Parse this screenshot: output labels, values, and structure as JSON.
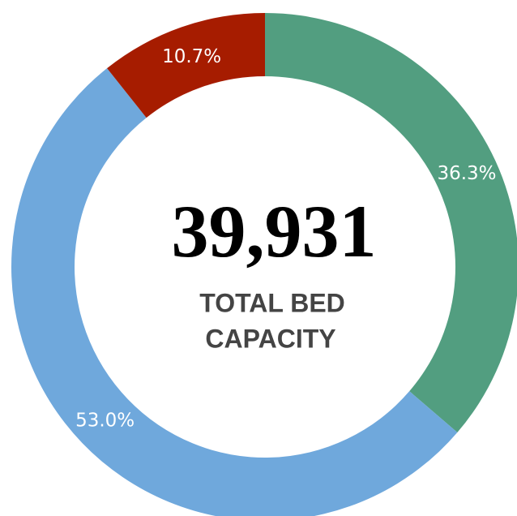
{
  "chart_data": {
    "type": "donut",
    "values": [
      36.3,
      53.0,
      10.7
    ],
    "value_labels": [
      "36.3%",
      "53.0%",
      "10.7%"
    ],
    "colors": [
      "#529e80",
      "#6fa8dc",
      "#a61c00"
    ],
    "center_value": "39,931",
    "center_label": [
      "TOTAL BED",
      "CAPACITY"
    ]
  }
}
